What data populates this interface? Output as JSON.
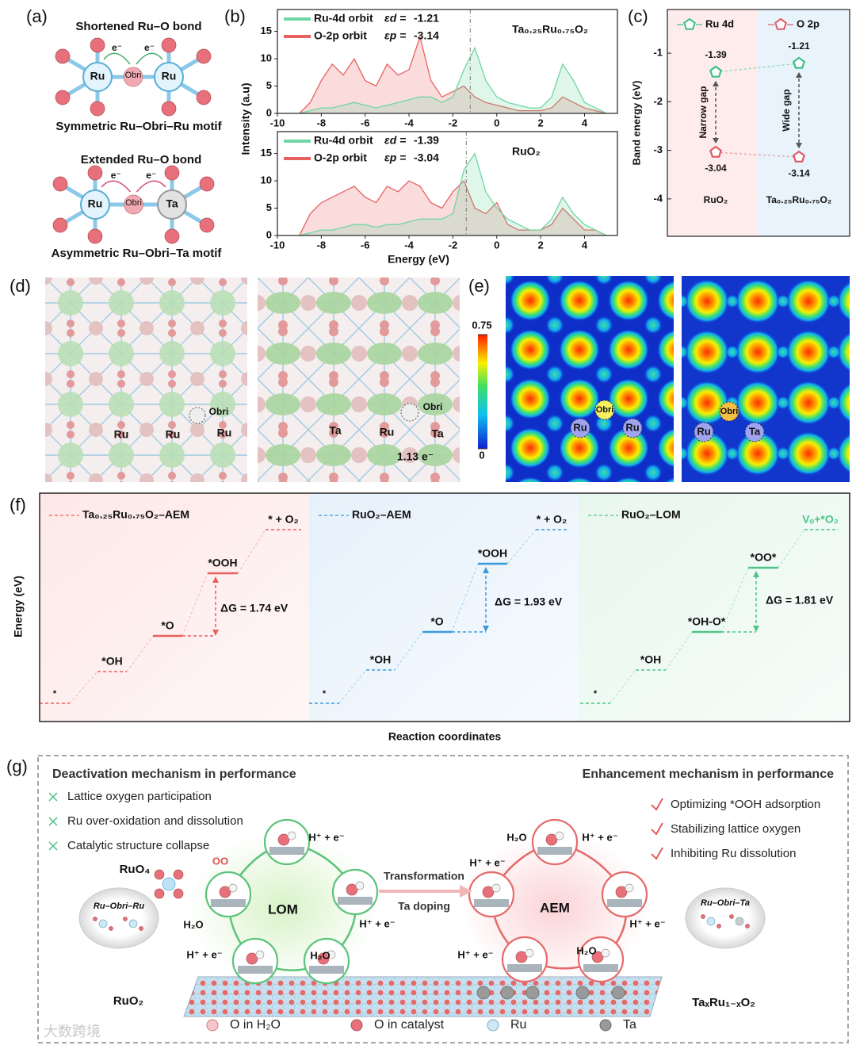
{
  "panel_a": {
    "label": "(a)",
    "top_title": "Shortened Ru–O bond",
    "top_caption": "Symmetric Ru–Obri–Ru motif",
    "bottom_title": "Extended Ru–O bond",
    "bottom_caption": "Asymmetric Ru–Obri–Ta motif",
    "ru": "Ru",
    "obri": "Obri",
    "ta": "Ta",
    "electron": "e⁻"
  },
  "chart_data": [
    {
      "type": "line",
      "panel_label": "(b)",
      "y_label": "Intensity (a.u)",
      "material": "Ta₀.₂₅Ru₀.₇₅O₂",
      "x": [
        -9,
        -8.5,
        -8,
        -7.5,
        -7,
        -6.5,
        -6,
        -5.5,
        -5,
        -4.5,
        -4,
        -3.5,
        -3,
        -2.5,
        -2,
        -1.5,
        -1,
        -0.5,
        0,
        0.5,
        1,
        1.5,
        2,
        2.5,
        3,
        3.5,
        4,
        4.5,
        5
      ],
      "series": [
        {
          "name": "Ru-4d orbit",
          "color": "#6fd6a4",
          "center_label": "εd =",
          "center": -1.21,
          "values": [
            0,
            0.5,
            1,
            1,
            1.5,
            2,
            1.5,
            1,
            1.5,
            2,
            2.5,
            3,
            3,
            2,
            3,
            8,
            12,
            6,
            3,
            2,
            1.5,
            1,
            1,
            3,
            9,
            6,
            2,
            1,
            0
          ]
        },
        {
          "name": "O-2p orbit",
          "color": "#e8615f",
          "center_label": "εp =",
          "center": -3.14,
          "values": [
            0,
            2,
            6,
            9,
            7,
            10,
            6,
            5,
            9,
            7,
            8,
            14,
            6,
            3,
            4,
            5,
            3,
            2,
            1.5,
            1,
            0.5,
            0.5,
            0.5,
            1,
            3,
            2,
            1,
            0.5,
            0
          ]
        }
      ],
      "xlim": [
        -10,
        5.5
      ],
      "xticks": [
        -10,
        -8,
        -6,
        -4,
        -2,
        0,
        2,
        4
      ],
      "ylim": [
        0,
        19
      ],
      "yticks": [
        0,
        5,
        10,
        15
      ]
    },
    {
      "type": "line",
      "x_label": "Energy (eV)",
      "material": "RuO₂",
      "x": [
        -9,
        -8.5,
        -8,
        -7.5,
        -7,
        -6.5,
        -6,
        -5.5,
        -5,
        -4.5,
        -4,
        -3.5,
        -3,
        -2.5,
        -2,
        -1.5,
        -1,
        -0.5,
        0,
        0.5,
        1,
        1.5,
        2,
        2.5,
        3,
        3.5,
        4,
        4.5,
        5
      ],
      "series": [
        {
          "name": "Ru-4d orbit",
          "color": "#6fd6a4",
          "center_label": "εd =",
          "center": -1.39,
          "values": [
            0,
            0.5,
            1,
            1,
            1.5,
            2,
            2,
            1.5,
            2,
            2,
            2.5,
            3,
            3,
            3,
            4,
            12,
            15,
            8,
            5,
            3,
            2,
            1,
            1,
            3,
            7,
            4,
            2,
            1,
            0
          ]
        },
        {
          "name": "O-2p orbit",
          "color": "#e8615f",
          "center_label": "εp =",
          "center": -3.04,
          "values": [
            0,
            4,
            6,
            7,
            8,
            9,
            7,
            6,
            9,
            8,
            10,
            9,
            6,
            5,
            8,
            10,
            5,
            4,
            6,
            2,
            1,
            1,
            1,
            2,
            5,
            3,
            1,
            1,
            0
          ]
        }
      ],
      "xlim": [
        -10,
        5.5
      ],
      "xticks": [
        -10,
        -8,
        -6,
        -4,
        -2,
        0,
        2,
        4
      ],
      "ylim": [
        0,
        19
      ],
      "yticks": [
        0,
        5,
        10,
        15
      ]
    },
    {
      "type": "scatter",
      "panel_label": "(c)",
      "y_label": "Band energy (eV)",
      "categories": [
        "RuO₂",
        "Ta₀.₂₅Ru₀.₇₅O₂"
      ],
      "series": [
        {
          "name": "Ru 4d",
          "color": "#3dbf8a",
          "values": [
            -1.39,
            -1.21
          ]
        },
        {
          "name": "O 2p",
          "color": "#e05a66",
          "values": [
            -3.04,
            -3.14
          ]
        }
      ],
      "annotations": [
        "Narrow gap",
        "Wide gap"
      ],
      "ylim": [
        -4.77,
        -0.1
      ],
      "yticks": [
        -1,
        -2,
        -3,
        -4
      ]
    }
  ],
  "panel_d": {
    "label": "(d)",
    "left_atoms": [
      "Ru",
      "Ru",
      "Ru",
      "Obri"
    ],
    "right_atoms": [
      "Ta",
      "Ru",
      "Ta",
      "Obri"
    ],
    "charge": "1.13 e⁻"
  },
  "panel_e": {
    "label": "(e)",
    "colorbar": {
      "lim": [
        0,
        0.75
      ],
      "ticks": [
        0,
        0.75
      ]
    },
    "left_atoms": [
      "Ru",
      "Obri",
      "Ru"
    ],
    "right_atoms": [
      "Ru",
      "Obri",
      "Ta"
    ]
  },
  "panel_f": {
    "label": "(f)",
    "y_label": "Energy (eV)",
    "x_label": "Reaction coordinates",
    "pathways": [
      {
        "name": "Ta₀.₂₅Ru₀.₇₅O₂–AEM",
        "color": "#e8615f",
        "steps": [
          "*",
          "*OH",
          "*O",
          "*OOH",
          "* + O₂"
        ],
        "delta_g": "ΔG = 1.74 eV"
      },
      {
        "name": "RuO₂–AEM",
        "color": "#3a9ad9",
        "steps": [
          "*",
          "*OH",
          "*O",
          "*OOH",
          "* + O₂"
        ],
        "delta_g": "ΔG = 1.93 eV"
      },
      {
        "name": "RuO₂–LOM",
        "color": "#4cc586",
        "steps": [
          "*",
          "*OH",
          "*OH-O*",
          "*OO*",
          "Vₒ+*O₂"
        ],
        "delta_g": "ΔG = 1.81 eV"
      }
    ]
  },
  "panel_g": {
    "label": "(g)",
    "left_heading": "Deactivation mechanism in performance",
    "left_items": [
      "Lattice oxygen participation",
      "Ru over-oxidation and dissolution",
      "Catalytic structure collapse"
    ],
    "right_heading": "Enhancement mechanism in performance",
    "right_items": [
      "Optimizing *OOH adsorption",
      "Stabilizing lattice oxygen",
      "Inhibiting Ru dissolution"
    ],
    "lom": "LOM",
    "aem": "AEM",
    "transformation": "Transformation",
    "ta_doping": "Ta doping",
    "proton_electron": "H⁺ + e⁻",
    "water": "H₂O",
    "ruo4": "RuO₄",
    "oo": "OO",
    "left_motif": "Ru–Obri–Ru",
    "right_motif": "Ru–Obri–Ta",
    "left_material": "RuO₂",
    "right_material": "TaₓRu₁₋ₓO₂",
    "legend": [
      "O in H₂O",
      "O in catalyst",
      "Ru",
      "Ta"
    ],
    "watermark": "大数跨境"
  }
}
